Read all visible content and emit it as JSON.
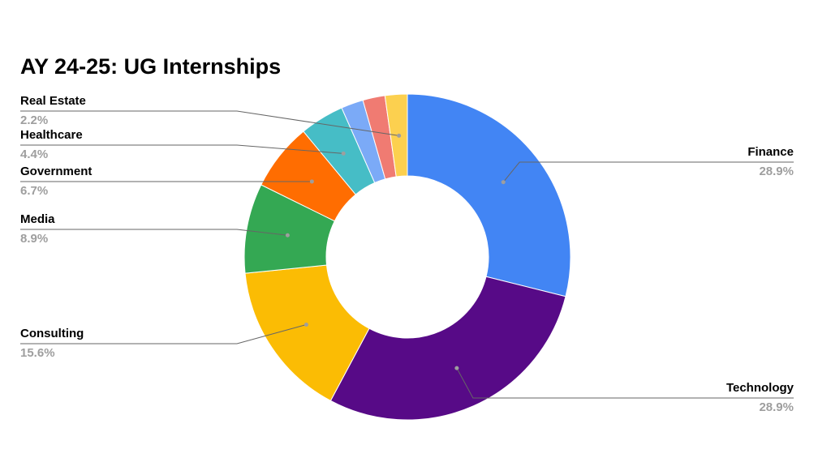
{
  "chart_data": {
    "type": "pie",
    "title": "AY 24-25: UG Internships",
    "categories": [
      "Finance",
      "Technology",
      "Consulting",
      "Media",
      "Government",
      "Healthcare",
      null,
      null,
      "Real Estate"
    ],
    "values": [
      28.9,
      28.9,
      15.6,
      8.9,
      6.7,
      4.4,
      2.2,
      2.2,
      2.2
    ],
    "value_labels": [
      "28.9%",
      "28.9%",
      "15.6%",
      "8.9%",
      "6.7%",
      "4.4%",
      null,
      null,
      "2.2%"
    ],
    "colors": [
      "#4285f4",
      "#570a87",
      "#fbbc04",
      "#34a853",
      "#ff6d01",
      "#46bdc6",
      "#7baaf7",
      "#f07b72",
      "#fcd04f"
    ],
    "donut": true
  }
}
